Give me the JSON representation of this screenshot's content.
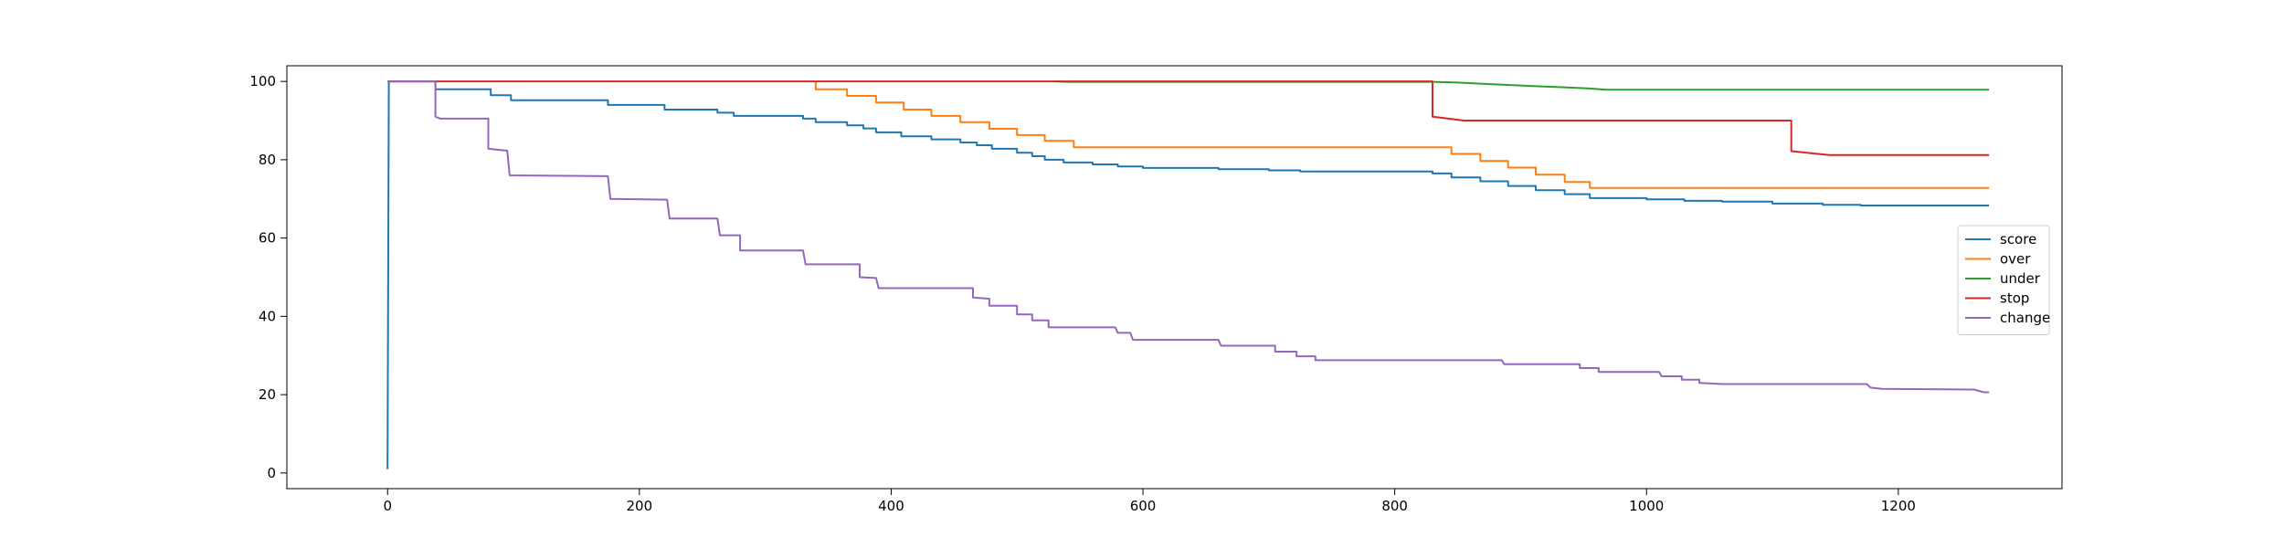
{
  "chart_data": {
    "type": "line",
    "title": "",
    "xlabel": "",
    "ylabel": "",
    "xlim": [
      -80,
      1330
    ],
    "ylim": [
      -4,
      104
    ],
    "xticks": [
      0,
      200,
      400,
      600,
      800,
      1000,
      1200
    ],
    "yticks": [
      0,
      20,
      40,
      60,
      80,
      100
    ],
    "grid": false,
    "legend_position": "center-right",
    "series": [
      {
        "name": "score",
        "color": "#1f77b4",
        "points": [
          [
            0,
            1
          ],
          [
            1,
            100
          ],
          [
            38,
            100
          ],
          [
            38,
            98
          ],
          [
            82,
            98
          ],
          [
            82,
            96.5
          ],
          [
            98,
            96.5
          ],
          [
            98,
            95.2
          ],
          [
            175,
            95.2
          ],
          [
            175,
            94
          ],
          [
            220,
            94
          ],
          [
            220,
            92.8
          ],
          [
            262,
            92.8
          ],
          [
            262,
            92
          ],
          [
            275,
            92
          ],
          [
            275,
            91.2
          ],
          [
            330,
            91.2
          ],
          [
            330,
            90.5
          ],
          [
            340,
            90.5
          ],
          [
            340,
            89.6
          ],
          [
            365,
            89.6
          ],
          [
            365,
            88.8
          ],
          [
            378,
            88.8
          ],
          [
            378,
            88
          ],
          [
            388,
            88
          ],
          [
            388,
            87
          ],
          [
            408,
            87
          ],
          [
            408,
            86
          ],
          [
            432,
            86
          ],
          [
            432,
            85.2
          ],
          [
            455,
            85.2
          ],
          [
            455,
            84.4
          ],
          [
            468,
            84.4
          ],
          [
            468,
            83.7
          ],
          [
            480,
            83.7
          ],
          [
            480,
            82.8
          ],
          [
            500,
            82.8
          ],
          [
            500,
            81.8
          ],
          [
            512,
            81.8
          ],
          [
            512,
            80.9
          ],
          [
            522,
            80.9
          ],
          [
            522,
            80
          ],
          [
            537,
            80
          ],
          [
            537,
            79.3
          ],
          [
            560,
            79.3
          ],
          [
            560,
            78.8
          ],
          [
            580,
            78.8
          ],
          [
            580,
            78.3
          ],
          [
            600,
            78.3
          ],
          [
            600,
            77.9
          ],
          [
            660,
            77.9
          ],
          [
            660,
            77.6
          ],
          [
            700,
            77.6
          ],
          [
            700,
            77.3
          ],
          [
            725,
            77.3
          ],
          [
            725,
            77
          ],
          [
            830,
            77
          ],
          [
            830,
            76.5
          ],
          [
            845,
            76.5
          ],
          [
            845,
            75.5
          ],
          [
            868,
            75.5
          ],
          [
            868,
            74.5
          ],
          [
            890,
            74.5
          ],
          [
            890,
            73.3
          ],
          [
            912,
            73.3
          ],
          [
            912,
            72.2
          ],
          [
            935,
            72.2
          ],
          [
            935,
            71.2
          ],
          [
            955,
            71.2
          ],
          [
            955,
            70.2
          ],
          [
            1000,
            70.2
          ],
          [
            1000,
            69.9
          ],
          [
            1030,
            69.9
          ],
          [
            1030,
            69.5
          ],
          [
            1060,
            69.5
          ],
          [
            1060,
            69.3
          ],
          [
            1100,
            69.3
          ],
          [
            1100,
            68.8
          ],
          [
            1140,
            68.8
          ],
          [
            1140,
            68.5
          ],
          [
            1170,
            68.5
          ],
          [
            1170,
            68.3
          ],
          [
            1272,
            68.3
          ]
        ]
      },
      {
        "name": "over",
        "color": "#ff7f0e",
        "points": [
          [
            340,
            100
          ],
          [
            340,
            98
          ],
          [
            365,
            98
          ],
          [
            365,
            96.3
          ],
          [
            388,
            96.3
          ],
          [
            388,
            94.6
          ],
          [
            410,
            94.6
          ],
          [
            410,
            92.8
          ],
          [
            432,
            92.8
          ],
          [
            432,
            91.2
          ],
          [
            455,
            91.2
          ],
          [
            455,
            89.6
          ],
          [
            478,
            89.6
          ],
          [
            478,
            87.9
          ],
          [
            500,
            87.9
          ],
          [
            500,
            86.3
          ],
          [
            522,
            86.3
          ],
          [
            522,
            84.8
          ],
          [
            545,
            84.8
          ],
          [
            545,
            83.2
          ],
          [
            845,
            83.2
          ],
          [
            845,
            81.5
          ],
          [
            868,
            81.5
          ],
          [
            868,
            79.7
          ],
          [
            890,
            79.7
          ],
          [
            890,
            78
          ],
          [
            912,
            78
          ],
          [
            912,
            76.2
          ],
          [
            935,
            76.2
          ],
          [
            935,
            74.3
          ],
          [
            955,
            74.3
          ],
          [
            955,
            72.8
          ],
          [
            1272,
            72.8
          ]
        ]
      },
      {
        "name": "under",
        "color": "#2ca02c",
        "points": [
          [
            530,
            100
          ],
          [
            540,
            99.9
          ],
          [
            830,
            99.9
          ],
          [
            850,
            99.7
          ],
          [
            870,
            99.4
          ],
          [
            890,
            99.1
          ],
          [
            910,
            98.8
          ],
          [
            935,
            98.5
          ],
          [
            955,
            98.2
          ],
          [
            968,
            97.9
          ],
          [
            1272,
            97.9
          ]
        ]
      },
      {
        "name": "stop",
        "color": "#d62728",
        "points": [
          [
            0,
            100
          ],
          [
            830,
            100
          ],
          [
            830,
            91
          ],
          [
            855,
            90
          ],
          [
            1115,
            90
          ],
          [
            1115,
            82.2
          ],
          [
            1145,
            81.2
          ],
          [
            1272,
            81.2
          ]
        ]
      },
      {
        "name": "change",
        "color": "#9467bd",
        "points": [
          [
            0,
            100
          ],
          [
            38,
            100
          ],
          [
            38,
            91
          ],
          [
            42,
            90.5
          ],
          [
            80,
            90.5
          ],
          [
            80,
            82.8
          ],
          [
            95,
            82.3
          ],
          [
            97,
            76
          ],
          [
            175,
            75.8
          ],
          [
            177,
            70
          ],
          [
            222,
            69.8
          ],
          [
            224,
            65
          ],
          [
            262,
            65
          ],
          [
            264,
            60.7
          ],
          [
            280,
            60.7
          ],
          [
            280,
            56.8
          ],
          [
            330,
            56.8
          ],
          [
            332,
            53.3
          ],
          [
            375,
            53.3
          ],
          [
            375,
            50
          ],
          [
            388,
            49.8
          ],
          [
            390,
            47.2
          ],
          [
            465,
            47.2
          ],
          [
            465,
            44.8
          ],
          [
            478,
            44.5
          ],
          [
            478,
            42.7
          ],
          [
            500,
            42.7
          ],
          [
            500,
            40.5
          ],
          [
            512,
            40.5
          ],
          [
            512,
            39
          ],
          [
            525,
            39
          ],
          [
            525,
            37.2
          ],
          [
            578,
            37.2
          ],
          [
            580,
            35.8
          ],
          [
            590,
            35.8
          ],
          [
            592,
            34
          ],
          [
            660,
            34
          ],
          [
            662,
            32.5
          ],
          [
            705,
            32.5
          ],
          [
            705,
            31
          ],
          [
            722,
            31
          ],
          [
            722,
            29.8
          ],
          [
            737,
            29.8
          ],
          [
            737,
            28.8
          ],
          [
            885,
            28.8
          ],
          [
            887,
            27.8
          ],
          [
            947,
            27.8
          ],
          [
            947,
            26.8
          ],
          [
            962,
            26.8
          ],
          [
            962,
            25.8
          ],
          [
            1010,
            25.8
          ],
          [
            1012,
            24.7
          ],
          [
            1028,
            24.7
          ],
          [
            1028,
            23.8
          ],
          [
            1042,
            23.8
          ],
          [
            1042,
            23
          ],
          [
            1060,
            22.7
          ],
          [
            1175,
            22.7
          ],
          [
            1178,
            21.8
          ],
          [
            1187,
            21.5
          ],
          [
            1260,
            21.3
          ],
          [
            1268,
            20.6
          ],
          [
            1272,
            20.6
          ]
        ]
      }
    ]
  }
}
